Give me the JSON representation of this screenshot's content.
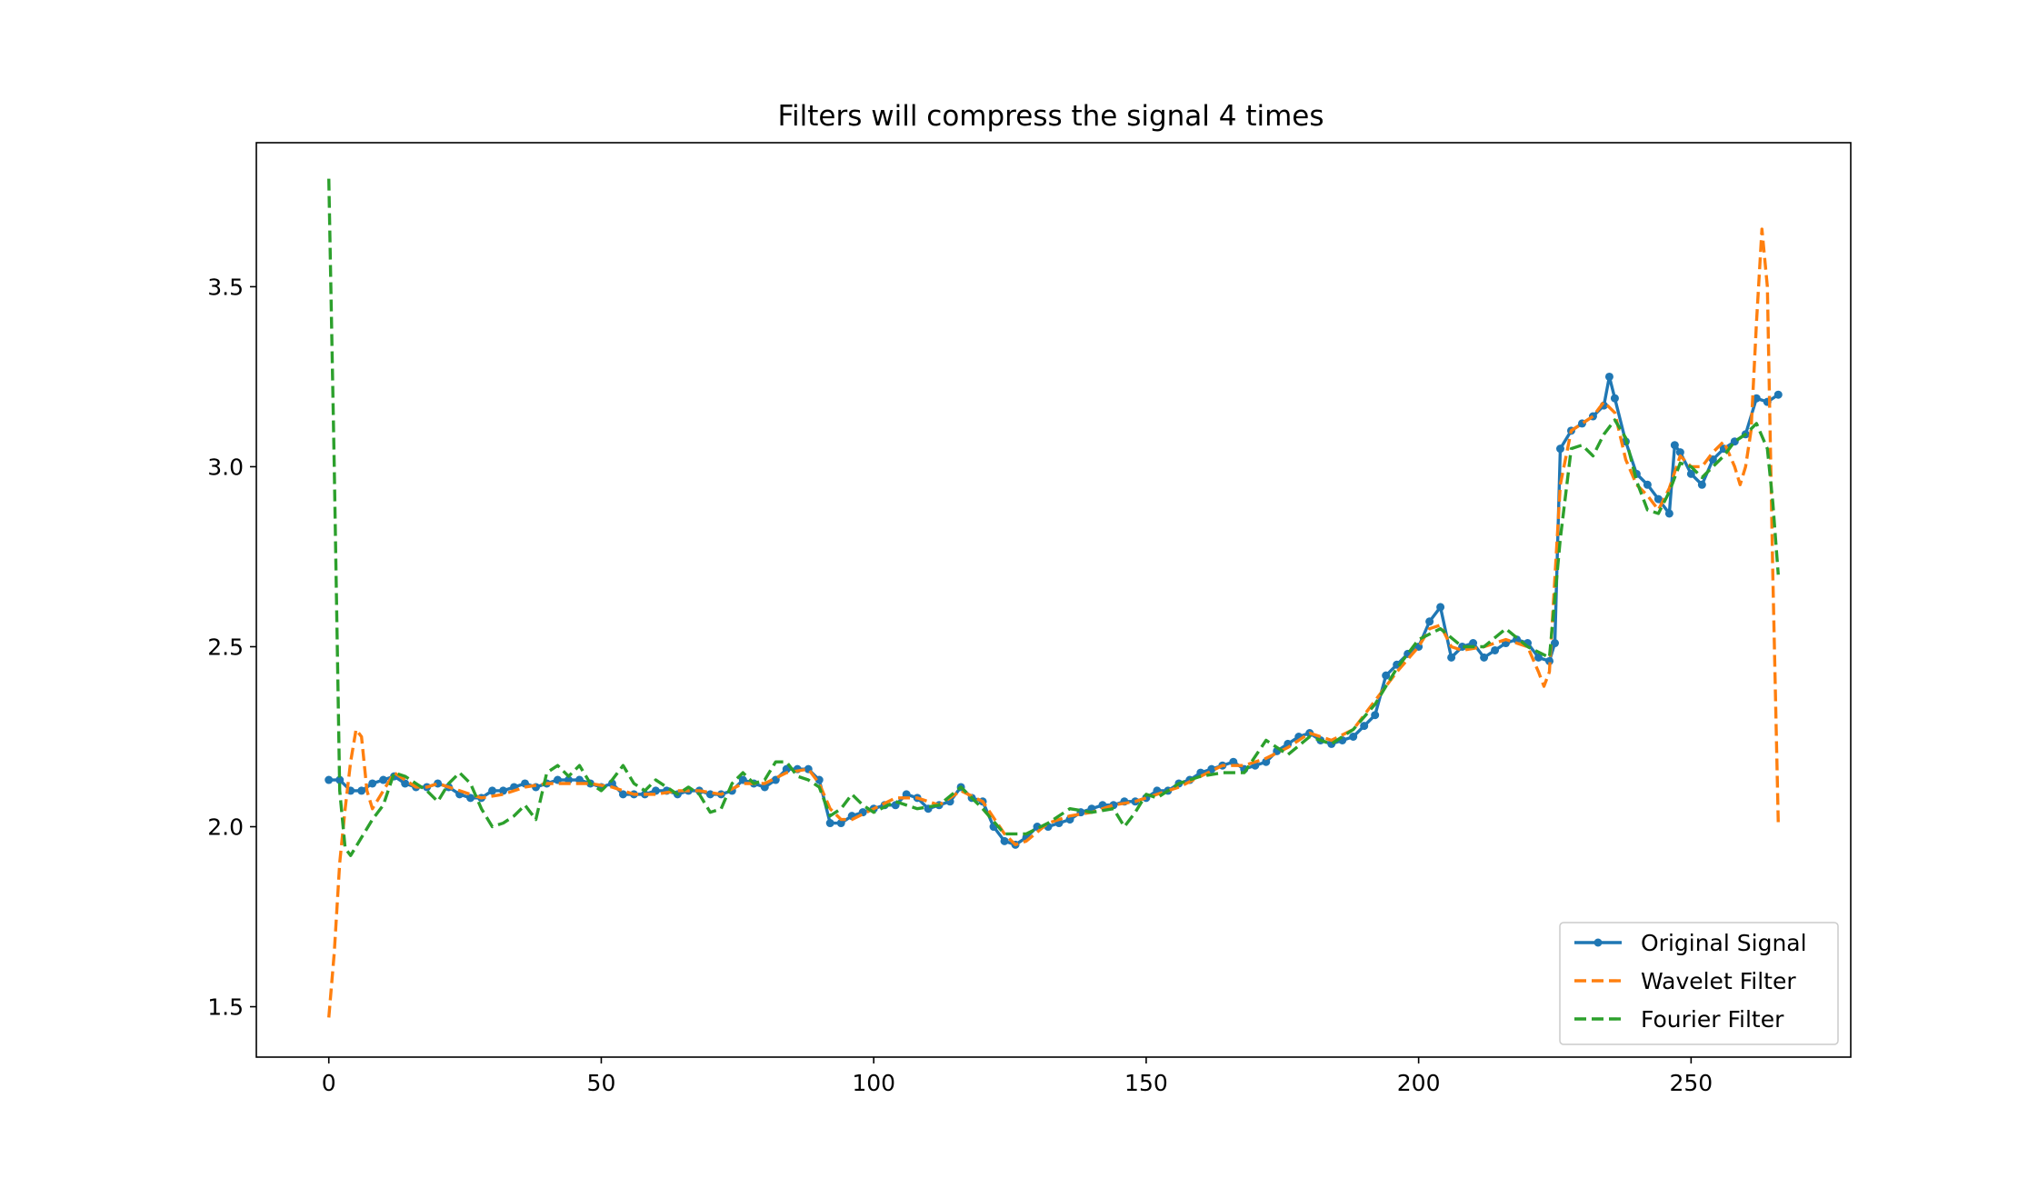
{
  "chart_data": {
    "type": "line",
    "title": "Filters will compress the signal 4 times",
    "xlabel": "",
    "ylabel": "",
    "xlim": [
      -13.3,
      279.3
    ],
    "ylim": [
      1.36,
      3.9
    ],
    "x_ticks": [
      0,
      50,
      100,
      150,
      200,
      250
    ],
    "x_tick_labels": [
      "0",
      "50",
      "100",
      "150",
      "200",
      "250"
    ],
    "y_ticks": [
      1.5,
      2.0,
      2.5,
      3.0,
      3.5
    ],
    "y_tick_labels": [
      "1.5",
      "2.0",
      "2.5",
      "3.0",
      "3.5"
    ],
    "grid": false,
    "legend_position": "lower-right",
    "series": [
      {
        "name": "Original Signal",
        "color": "#1f77b4",
        "style": "solid-with-dot-markers",
        "x": [
          0,
          2,
          4,
          6,
          8,
          10,
          12,
          14,
          16,
          18,
          20,
          22,
          24,
          26,
          28,
          30,
          32,
          34,
          36,
          38,
          40,
          42,
          44,
          46,
          48,
          50,
          52,
          54,
          56,
          58,
          60,
          62,
          64,
          66,
          68,
          70,
          72,
          74,
          76,
          78,
          80,
          82,
          84,
          86,
          88,
          90,
          92,
          94,
          96,
          98,
          100,
          102,
          104,
          106,
          108,
          110,
          112,
          114,
          116,
          118,
          120,
          122,
          124,
          126,
          128,
          130,
          132,
          134,
          136,
          138,
          140,
          142,
          144,
          146,
          148,
          150,
          152,
          154,
          156,
          158,
          160,
          162,
          164,
          166,
          168,
          170,
          172,
          174,
          176,
          178,
          180,
          182,
          184,
          186,
          188,
          190,
          192,
          194,
          196,
          198,
          200,
          202,
          204,
          206,
          208,
          210,
          212,
          214,
          216,
          218,
          220,
          222,
          224,
          225,
          226,
          228,
          230,
          232,
          234,
          235,
          236,
          238,
          240,
          242,
          244,
          246,
          247,
          248,
          250,
          252,
          254,
          256,
          258,
          260,
          262,
          264,
          266
        ],
        "values": [
          2.13,
          2.13,
          2.1,
          2.1,
          2.12,
          2.13,
          2.14,
          2.12,
          2.11,
          2.11,
          2.12,
          2.11,
          2.09,
          2.08,
          2.08,
          2.1,
          2.1,
          2.11,
          2.12,
          2.11,
          2.12,
          2.13,
          2.13,
          2.13,
          2.12,
          2.11,
          2.12,
          2.09,
          2.09,
          2.09,
          2.1,
          2.1,
          2.09,
          2.1,
          2.1,
          2.09,
          2.09,
          2.1,
          2.13,
          2.12,
          2.11,
          2.13,
          2.16,
          2.16,
          2.16,
          2.13,
          2.01,
          2.01,
          2.03,
          2.04,
          2.05,
          2.06,
          2.06,
          2.09,
          2.08,
          2.05,
          2.06,
          2.07,
          2.11,
          2.08,
          2.07,
          2.0,
          1.96,
          1.95,
          1.97,
          2.0,
          2.0,
          2.01,
          2.02,
          2.04,
          2.05,
          2.06,
          2.06,
          2.07,
          2.07,
          2.08,
          2.1,
          2.1,
          2.12,
          2.13,
          2.15,
          2.16,
          2.17,
          2.18,
          2.16,
          2.17,
          2.18,
          2.21,
          2.23,
          2.25,
          2.26,
          2.24,
          2.23,
          2.24,
          2.25,
          2.28,
          2.31,
          2.42,
          2.45,
          2.48,
          2.5,
          2.57,
          2.61,
          2.47,
          2.5,
          2.51,
          2.47,
          2.49,
          2.51,
          2.52,
          2.51,
          2.47,
          2.46,
          2.51,
          3.05,
          3.1,
          3.12,
          3.14,
          3.17,
          3.25,
          3.19,
          3.07,
          2.98,
          2.95,
          2.91,
          2.87,
          3.06,
          3.04,
          2.98,
          2.95,
          3.02,
          3.05,
          3.07,
          3.09,
          3.19,
          3.18,
          3.2
        ]
      },
      {
        "name": "Wavelet Filter",
        "color": "#ff7f0e",
        "style": "dashed",
        "x": [
          0,
          1,
          2,
          3,
          4,
          5,
          6,
          7,
          8,
          10,
          12,
          14,
          16,
          18,
          20,
          24,
          28,
          32,
          36,
          40,
          44,
          48,
          52,
          56,
          60,
          64,
          68,
          72,
          76,
          80,
          84,
          88,
          90,
          92,
          94,
          96,
          100,
          104,
          108,
          112,
          116,
          120,
          124,
          126,
          128,
          132,
          136,
          140,
          144,
          148,
          152,
          156,
          160,
          164,
          168,
          172,
          176,
          180,
          184,
          188,
          192,
          196,
          200,
          202,
          204,
          206,
          208,
          212,
          216,
          220,
          222,
          223,
          224,
          226,
          228,
          230,
          232,
          234,
          236,
          238,
          240,
          242,
          244,
          246,
          248,
          250,
          252,
          254,
          256,
          258,
          259,
          260,
          261,
          262,
          263,
          264,
          265,
          266
        ],
        "values": [
          1.47,
          1.65,
          1.9,
          2.05,
          2.18,
          2.27,
          2.25,
          2.1,
          2.05,
          2.1,
          2.15,
          2.13,
          2.11,
          2.11,
          2.12,
          2.1,
          2.08,
          2.09,
          2.11,
          2.12,
          2.12,
          2.12,
          2.11,
          2.09,
          2.09,
          2.1,
          2.1,
          2.09,
          2.12,
          2.12,
          2.15,
          2.16,
          2.12,
          2.05,
          2.02,
          2.02,
          2.05,
          2.08,
          2.08,
          2.06,
          2.1,
          2.07,
          1.98,
          1.95,
          1.96,
          2.01,
          2.03,
          2.04,
          2.06,
          2.07,
          2.09,
          2.11,
          2.14,
          2.17,
          2.17,
          2.19,
          2.22,
          2.26,
          2.24,
          2.27,
          2.35,
          2.43,
          2.5,
          2.55,
          2.56,
          2.5,
          2.49,
          2.5,
          2.52,
          2.5,
          2.43,
          2.39,
          2.43,
          2.95,
          3.1,
          3.12,
          3.14,
          3.18,
          3.15,
          3.02,
          2.95,
          2.92,
          2.88,
          2.94,
          3.03,
          3.0,
          3.0,
          3.04,
          3.07,
          3.0,
          2.95,
          3.0,
          3.1,
          3.4,
          3.66,
          3.5,
          2.7,
          2.01
        ]
      },
      {
        "name": "Fourier Filter",
        "color": "#2ca02c",
        "style": "dashed",
        "x": [
          0,
          1,
          2,
          3,
          4,
          6,
          8,
          10,
          12,
          14,
          16,
          18,
          20,
          22,
          24,
          26,
          28,
          30,
          32,
          34,
          36,
          38,
          40,
          42,
          44,
          46,
          48,
          50,
          52,
          54,
          56,
          58,
          60,
          62,
          64,
          66,
          68,
          70,
          72,
          74,
          76,
          78,
          80,
          82,
          84,
          86,
          88,
          90,
          92,
          94,
          96,
          98,
          100,
          104,
          108,
          112,
          116,
          120,
          124,
          128,
          132,
          136,
          140,
          144,
          146,
          148,
          150,
          152,
          156,
          160,
          164,
          168,
          172,
          176,
          180,
          184,
          188,
          192,
          196,
          200,
          204,
          208,
          212,
          216,
          220,
          224,
          226,
          228,
          230,
          232,
          234,
          236,
          238,
          240,
          242,
          244,
          246,
          248,
          250,
          252,
          254,
          256,
          258,
          260,
          262,
          264,
          265,
          266
        ],
        "values": [
          3.8,
          3.0,
          2.1,
          1.94,
          1.92,
          1.97,
          2.02,
          2.06,
          2.15,
          2.14,
          2.12,
          2.1,
          2.07,
          2.12,
          2.15,
          2.12,
          2.05,
          2.0,
          2.01,
          2.03,
          2.06,
          2.02,
          2.15,
          2.17,
          2.14,
          2.17,
          2.12,
          2.1,
          2.13,
          2.17,
          2.12,
          2.1,
          2.13,
          2.11,
          2.09,
          2.11,
          2.09,
          2.04,
          2.05,
          2.12,
          2.15,
          2.12,
          2.13,
          2.18,
          2.18,
          2.14,
          2.13,
          2.11,
          2.03,
          2.05,
          2.09,
          2.06,
          2.04,
          2.07,
          2.05,
          2.06,
          2.11,
          2.05,
          1.98,
          1.98,
          2.01,
          2.05,
          2.04,
          2.05,
          2.0,
          2.04,
          2.09,
          2.08,
          2.12,
          2.14,
          2.15,
          2.15,
          2.24,
          2.2,
          2.25,
          2.23,
          2.27,
          2.34,
          2.44,
          2.52,
          2.55,
          2.5,
          2.5,
          2.55,
          2.5,
          2.47,
          2.8,
          3.05,
          3.06,
          3.03,
          3.09,
          3.13,
          3.08,
          2.96,
          2.88,
          2.87,
          2.93,
          3.01,
          3.0,
          2.97,
          3.0,
          3.03,
          3.07,
          3.09,
          3.12,
          3.05,
          2.9,
          2.7
        ]
      }
    ]
  }
}
